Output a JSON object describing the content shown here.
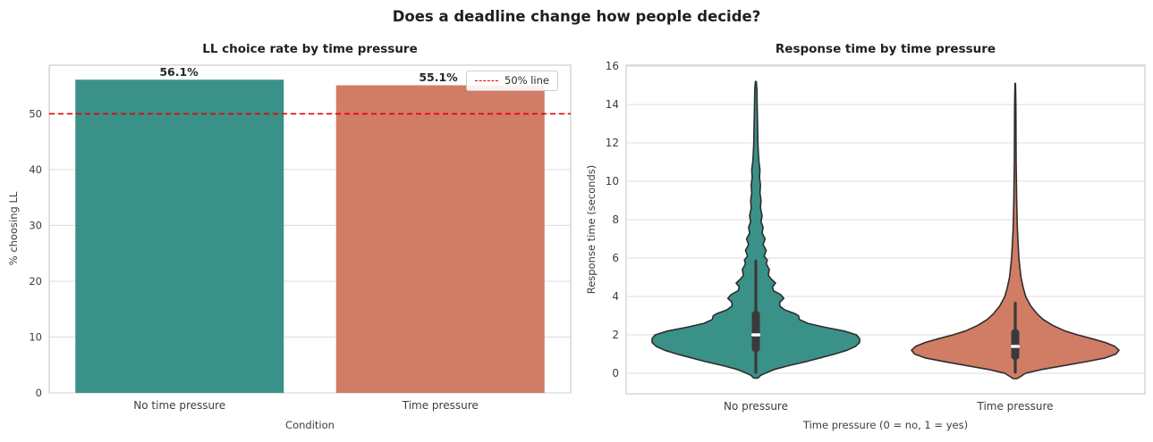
{
  "figure": {
    "title": "Does a deadline change how people decide?",
    "background": "#ffffff",
    "text_color": "#262626",
    "tick_color": "#3d3d3d",
    "grid_color": "#dcdcdc",
    "frame_color": "#cccccc"
  },
  "chart_data": [
    {
      "type": "bar",
      "title": "LL choice rate by time pressure",
      "xlabel": "Condition",
      "ylabel": "% choosing LL",
      "categories": [
        "No time pressure",
        "Time pressure"
      ],
      "values": [
        56.1,
        55.1
      ],
      "bar_labels": [
        "56.1%",
        "55.1%"
      ],
      "bar_colors": [
        "#3a9188",
        "#d17c65"
      ],
      "yticks": [
        0,
        10,
        20,
        30,
        40,
        50
      ],
      "ylim": [
        0,
        58.7
      ],
      "grid": true,
      "legend_position": "upper right",
      "reference_line": {
        "value": 50,
        "label": "50% line",
        "color": "#e60000",
        "style": "dashed"
      }
    },
    {
      "type": "violin",
      "title": "Response time by time pressure",
      "xlabel": "Time pressure (0 = no, 1 = yes)",
      "ylabel": "Response time (seconds)",
      "categories": [
        "No pressure",
        "Time pressure"
      ],
      "yticks": [
        0,
        2,
        4,
        6,
        8,
        10,
        12,
        14,
        16
      ],
      "ylim": [
        -1.07,
        16.05
      ],
      "grid": true,
      "inner": "box",
      "series": [
        {
          "name": "No pressure",
          "color": "#3a9188",
          "median": 2.0,
          "q1": 1.1,
          "q3": 3.25,
          "whisker_low": 0.05,
          "whisker_high": 5.85,
          "min": -0.25,
          "max": 15.2,
          "profile": [
            [
              -0.25,
              0.02
            ],
            [
              -0.1,
              0.05
            ],
            [
              0.0,
              0.09
            ],
            [
              0.2,
              0.18
            ],
            [
              0.4,
              0.32
            ],
            [
              0.6,
              0.48
            ],
            [
              0.8,
              0.62
            ],
            [
              1.0,
              0.76
            ],
            [
              1.2,
              0.88
            ],
            [
              1.4,
              0.96
            ],
            [
              1.6,
              1.0
            ],
            [
              1.8,
              1.0
            ],
            [
              2.0,
              0.97
            ],
            [
              2.2,
              0.85
            ],
            [
              2.4,
              0.66
            ],
            [
              2.6,
              0.5
            ],
            [
              2.8,
              0.42
            ],
            [
              3.0,
              0.41
            ],
            [
              3.1,
              0.38
            ],
            [
              3.3,
              0.28
            ],
            [
              3.5,
              0.23
            ],
            [
              3.7,
              0.23
            ],
            [
              3.9,
              0.27
            ],
            [
              4.1,
              0.24
            ],
            [
              4.3,
              0.17
            ],
            [
              4.5,
              0.16
            ],
            [
              4.7,
              0.19
            ],
            [
              4.9,
              0.15
            ],
            [
              5.1,
              0.12
            ],
            [
              5.4,
              0.13
            ],
            [
              5.7,
              0.1
            ],
            [
              5.9,
              0.11
            ],
            [
              6.1,
              0.08
            ],
            [
              6.4,
              0.1
            ],
            [
              6.7,
              0.07
            ],
            [
              7.0,
              0.09
            ],
            [
              7.3,
              0.06
            ],
            [
              7.6,
              0.07
            ],
            [
              7.9,
              0.05
            ],
            [
              8.2,
              0.06
            ],
            [
              8.6,
              0.045
            ],
            [
              9.0,
              0.05
            ],
            [
              9.4,
              0.04
            ],
            [
              9.8,
              0.045
            ],
            [
              10.2,
              0.035
            ],
            [
              10.6,
              0.04
            ],
            [
              11.0,
              0.03
            ],
            [
              11.4,
              0.025
            ],
            [
              12.0,
              0.02
            ],
            [
              12.6,
              0.018
            ],
            [
              13.4,
              0.015
            ],
            [
              14.2,
              0.012
            ],
            [
              14.8,
              0.01
            ],
            [
              15.2,
              0.004
            ]
          ]
        },
        {
          "name": "Time pressure",
          "color": "#d17c65",
          "median": 1.4,
          "q1": 0.7,
          "q3": 2.3,
          "whisker_low": 0.05,
          "whisker_high": 3.65,
          "min": -0.28,
          "max": 15.1,
          "profile": [
            [
              -0.28,
              0.02
            ],
            [
              0.0,
              0.1
            ],
            [
              0.2,
              0.26
            ],
            [
              0.4,
              0.47
            ],
            [
              0.6,
              0.68
            ],
            [
              0.8,
              0.87
            ],
            [
              1.0,
              0.97
            ],
            [
              1.2,
              1.0
            ],
            [
              1.4,
              0.96
            ],
            [
              1.6,
              0.87
            ],
            [
              1.8,
              0.74
            ],
            [
              2.0,
              0.6
            ],
            [
              2.2,
              0.48
            ],
            [
              2.5,
              0.36
            ],
            [
              2.8,
              0.27
            ],
            [
              3.1,
              0.21
            ],
            [
              3.5,
              0.15
            ],
            [
              4.0,
              0.1
            ],
            [
              4.5,
              0.075
            ],
            [
              5.0,
              0.055
            ],
            [
              5.5,
              0.045
            ],
            [
              6.0,
              0.035
            ],
            [
              6.5,
              0.03
            ],
            [
              7.0,
              0.025
            ],
            [
              7.5,
              0.021
            ],
            [
              8.0,
              0.018
            ],
            [
              9.0,
              0.014
            ],
            [
              10.0,
              0.011
            ],
            [
              11.0,
              0.009
            ],
            [
              12.0,
              0.008
            ],
            [
              13.0,
              0.007
            ],
            [
              14.0,
              0.006
            ],
            [
              15.1,
              0.003
            ]
          ]
        }
      ]
    }
  ]
}
